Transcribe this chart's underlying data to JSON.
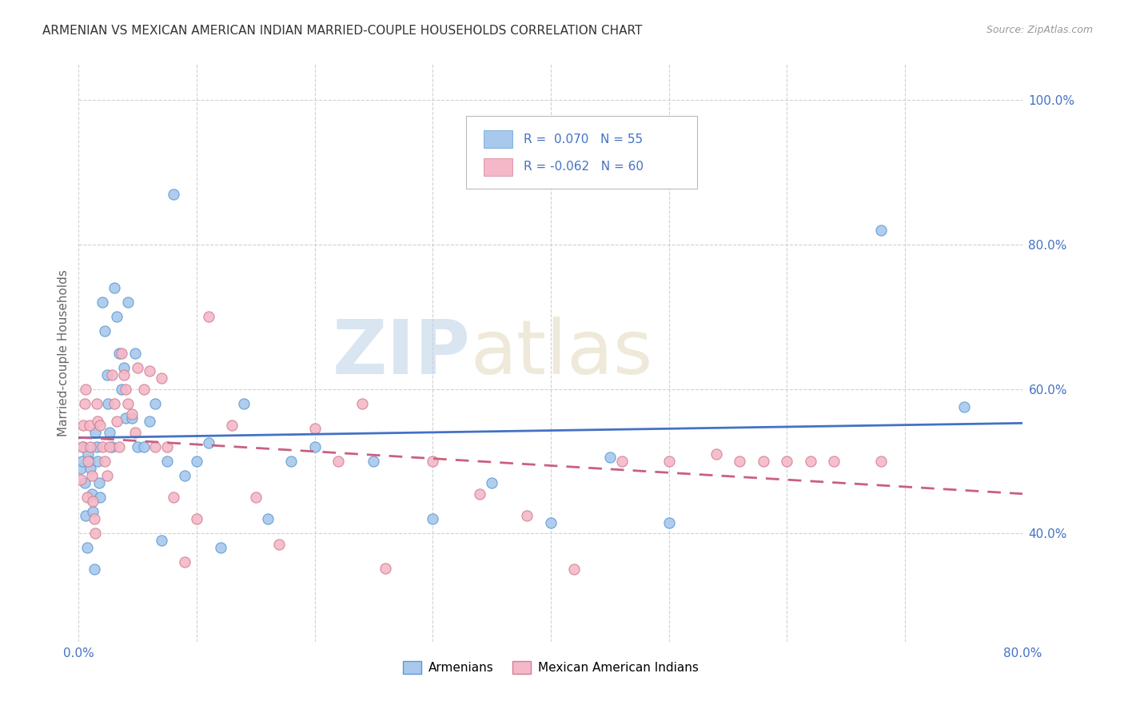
{
  "title": "ARMENIAN VS MEXICAN AMERICAN INDIAN MARRIED-COUPLE HOUSEHOLDS CORRELATION CHART",
  "source": "Source: ZipAtlas.com",
  "ylabel": "Married-couple Households",
  "xlim": [
    0.0,
    0.8
  ],
  "ylim": [
    0.25,
    1.05
  ],
  "xticks": [
    0.0,
    0.1,
    0.2,
    0.3,
    0.4,
    0.5,
    0.6,
    0.7,
    0.8
  ],
  "xticklabels": [
    "0.0%",
    "",
    "",
    "",
    "",
    "",
    "",
    "",
    "80.0%"
  ],
  "ytick_positions": [
    0.4,
    0.6,
    0.8,
    1.0
  ],
  "yticklabels": [
    "40.0%",
    "60.0%",
    "80.0%",
    "100.0%"
  ],
  "watermark_zip": "ZIP",
  "watermark_atlas": "atlas",
  "color_armenian": "#A8C8EC",
  "color_armenian_edge": "#5B9BD5",
  "color_mexican": "#F4B8C8",
  "color_mexican_edge": "#D08090",
  "color_line_armenian": "#4472C4",
  "color_line_mexican": "#C96080",
  "background_color": "#FFFFFF",
  "grid_color": "#CCCCCC",
  "armenian_x": [
    0.002,
    0.003,
    0.004,
    0.005,
    0.006,
    0.007,
    0.008,
    0.009,
    0.01,
    0.011,
    0.012,
    0.013,
    0.014,
    0.015,
    0.016,
    0.017,
    0.018,
    0.02,
    0.022,
    0.024,
    0.025,
    0.026,
    0.028,
    0.03,
    0.032,
    0.034,
    0.036,
    0.038,
    0.04,
    0.042,
    0.045,
    0.048,
    0.05,
    0.055,
    0.06,
    0.065,
    0.07,
    0.075,
    0.08,
    0.09,
    0.1,
    0.11,
    0.12,
    0.14,
    0.16,
    0.18,
    0.2,
    0.25,
    0.3,
    0.35,
    0.4,
    0.45,
    0.5,
    0.68,
    0.75
  ],
  "armenian_y": [
    0.49,
    0.5,
    0.52,
    0.47,
    0.425,
    0.38,
    0.51,
    0.5,
    0.49,
    0.455,
    0.43,
    0.35,
    0.54,
    0.52,
    0.5,
    0.47,
    0.45,
    0.72,
    0.68,
    0.62,
    0.58,
    0.54,
    0.52,
    0.74,
    0.7,
    0.65,
    0.6,
    0.63,
    0.56,
    0.72,
    0.56,
    0.65,
    0.52,
    0.52,
    0.555,
    0.58,
    0.39,
    0.5,
    0.87,
    0.48,
    0.5,
    0.525,
    0.38,
    0.58,
    0.42,
    0.5,
    0.52,
    0.5,
    0.42,
    0.47,
    0.415,
    0.505,
    0.415,
    0.82,
    0.575
  ],
  "mexican_x": [
    0.002,
    0.003,
    0.004,
    0.005,
    0.006,
    0.007,
    0.008,
    0.009,
    0.01,
    0.011,
    0.012,
    0.013,
    0.014,
    0.015,
    0.016,
    0.018,
    0.02,
    0.022,
    0.024,
    0.026,
    0.028,
    0.03,
    0.032,
    0.034,
    0.036,
    0.038,
    0.04,
    0.042,
    0.045,
    0.048,
    0.05,
    0.055,
    0.06,
    0.065,
    0.07,
    0.075,
    0.08,
    0.09,
    0.1,
    0.11,
    0.13,
    0.15,
    0.17,
    0.2,
    0.22,
    0.24,
    0.26,
    0.3,
    0.34,
    0.38,
    0.42,
    0.46,
    0.5,
    0.54,
    0.56,
    0.58,
    0.6,
    0.62,
    0.64,
    0.68
  ],
  "mexican_y": [
    0.475,
    0.52,
    0.55,
    0.58,
    0.6,
    0.45,
    0.5,
    0.55,
    0.52,
    0.48,
    0.445,
    0.42,
    0.4,
    0.58,
    0.555,
    0.55,
    0.52,
    0.5,
    0.48,
    0.52,
    0.62,
    0.58,
    0.555,
    0.52,
    0.65,
    0.62,
    0.6,
    0.58,
    0.565,
    0.54,
    0.63,
    0.6,
    0.625,
    0.52,
    0.615,
    0.52,
    0.45,
    0.36,
    0.42,
    0.7,
    0.55,
    0.45,
    0.385,
    0.545,
    0.5,
    0.58,
    0.352,
    0.5,
    0.455,
    0.425,
    0.35,
    0.5,
    0.5,
    0.51,
    0.5,
    0.5,
    0.5,
    0.5,
    0.5,
    0.5
  ]
}
